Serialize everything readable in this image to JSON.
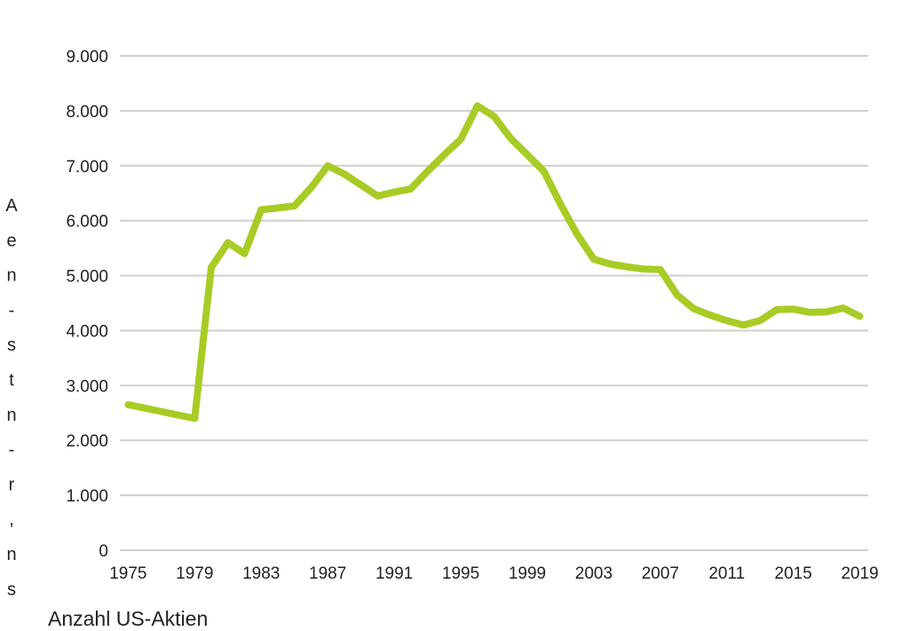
{
  "caption": "Anzahl US-Aktien",
  "side_text": [
    "A",
    "e",
    "n",
    "-",
    "s",
    "t",
    "n",
    "-",
    "r",
    ",",
    "n",
    "s"
  ],
  "colors": {
    "line": "#a8cc25",
    "grid": "#cfcfcf",
    "text": "#222222"
  },
  "chart_data": {
    "type": "line",
    "title": "",
    "xlabel": "",
    "ylabel": "",
    "xlim": [
      1974.5,
      2019.5
    ],
    "ylim": [
      0,
      9000
    ],
    "grid": true,
    "x_ticks": [
      "1975",
      "1979",
      "1983",
      "1987",
      "1991",
      "1995",
      "1999",
      "2003",
      "2007",
      "2011",
      "2015",
      "2019"
    ],
    "y_ticks": [
      "0",
      "1.000",
      "2.000",
      "3.000",
      "4.000",
      "5.000",
      "6.000",
      "7.000",
      "8.000",
      "9.000"
    ],
    "series": [
      {
        "x": [
          1975,
          1979,
          1980,
          1981,
          1982,
          1983,
          1984,
          1985,
          1986,
          1987,
          1988,
          1989,
          1990,
          1991,
          1992,
          1993,
          1994,
          1995,
          1996,
          1997,
          1998,
          1999,
          2000,
          2001,
          2002,
          2003,
          2004,
          2005,
          2006,
          2007,
          2008,
          2009,
          2010,
          2011,
          2012,
          2013,
          2014,
          2015,
          2016,
          2017,
          2018,
          2019
        ],
        "values": [
          2650,
          2400,
          5150,
          5600,
          5400,
          6200,
          6230,
          6270,
          6600,
          7000,
          6850,
          6650,
          6450,
          6520,
          6580,
          6900,
          7200,
          7480,
          8090,
          7900,
          7500,
          7200,
          6900,
          6300,
          5750,
          5300,
          5210,
          5160,
          5120,
          5110,
          4650,
          4400,
          4280,
          4180,
          4100,
          4180,
          4380,
          4390,
          4330,
          4340,
          4410,
          4260
        ]
      }
    ]
  }
}
